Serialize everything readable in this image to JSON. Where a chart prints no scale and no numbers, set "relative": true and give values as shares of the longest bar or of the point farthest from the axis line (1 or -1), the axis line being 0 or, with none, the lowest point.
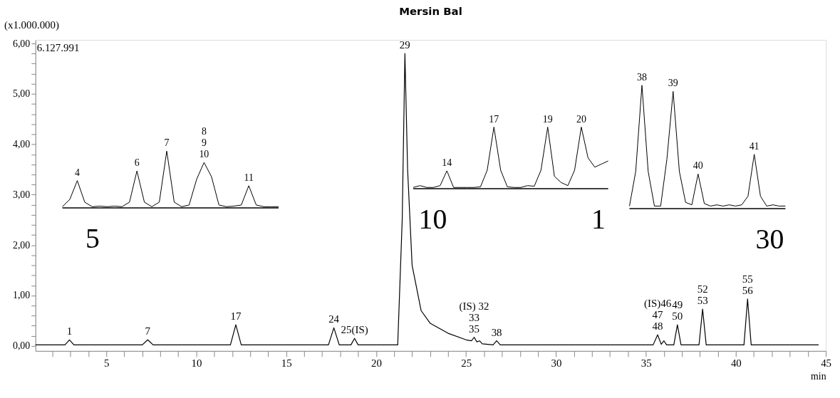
{
  "chart_data": [
    {
      "type": "line",
      "title": "Mersin Bal",
      "xlabel": "min",
      "annotations": [
        "(x1.000.000)",
        "6.127.991",
        {
          "text": "1",
          "x": 2.95,
          "y": 0.12
        },
        {
          "text": "7",
          "x": 7.3,
          "y": 0.12
        },
        {
          "text": "17",
          "x": 12.2,
          "y": 0.42
        },
        {
          "text": "24",
          "x": 17.65,
          "y": 0.36
        },
        {
          "text": "25(IS)",
          "x": 18.8,
          "y": 0.15
        },
        {
          "text": "29",
          "x": 21.6,
          "y": 5.8
        },
        {
          "text": "(IS) 32\n33\n35",
          "x": 25.45,
          "y": 0.17
        },
        {
          "text": "38",
          "x": 26.7,
          "y": 0.1
        },
        {
          "text": "(IS)46\n47\n48",
          "x": 35.65,
          "y": 0.22
        },
        {
          "text": "49\n50",
          "x": 36.75,
          "y": 0.42
        },
        {
          "text": "52\n53",
          "x": 38.15,
          "y": 0.73
        },
        {
          "text": "55\n56",
          "x": 40.65,
          "y": 0.93
        }
      ],
      "xlim": [
        1.06,
        45
      ],
      "xticks": [
        {
          "value": 2,
          "label": null
        },
        {
          "value": 3,
          "label": null
        },
        {
          "value": 4,
          "label": null
        },
        5,
        {
          "value": 6,
          "label": null
        },
        {
          "value": 7,
          "label": null
        },
        {
          "value": 8,
          "label": null
        },
        {
          "value": 9,
          "label": null
        },
        10,
        {
          "value": 11,
          "label": null
        },
        {
          "value": 12,
          "label": null
        },
        {
          "value": 13,
          "label": null
        },
        {
          "value": 14,
          "label": null
        },
        15,
        {
          "value": 16,
          "label": null
        },
        {
          "value": 17,
          "label": null
        },
        {
          "value": 18,
          "label": null
        },
        {
          "value": 19,
          "label": null
        },
        20,
        {
          "value": 21,
          "label": null
        },
        {
          "value": 22,
          "label": null
        },
        {
          "value": 23,
          "label": null
        },
        {
          "value": 24,
          "label": null
        },
        25,
        {
          "value": 26,
          "label": null
        },
        {
          "value": 27,
          "label": null
        },
        {
          "value": 28,
          "label": null
        },
        {
          "value": 29,
          "label": null
        },
        30,
        {
          "value": 31,
          "label": null
        },
        {
          "value": 32,
          "label": null
        },
        {
          "value": 33,
          "label": null
        },
        {
          "value": 34,
          "label": null
        },
        35,
        {
          "value": 36,
          "label": null
        },
        {
          "value": 37,
          "label": null
        },
        {
          "value": 38,
          "label": null
        },
        {
          "value": 39,
          "label": null
        },
        40,
        {
          "value": 41,
          "label": null
        },
        {
          "value": 42,
          "label": null
        },
        {
          "value": 43,
          "label": null
        },
        {
          "value": 44,
          "label": null
        },
        45
      ],
      "ylim": [
        -0.1,
        6.07
      ],
      "yticks": [
        {
          "value": 0,
          "label": "0,00"
        },
        {
          "value": 0.2,
          "label": null
        },
        {
          "value": 0.4,
          "label": null
        },
        {
          "value": 0.6,
          "label": null
        },
        {
          "value": 0.8,
          "label": null
        },
        {
          "value": 1,
          "label": "1,00"
        },
        {
          "value": 1.2,
          "label": null
        },
        {
          "value": 1.4,
          "label": null
        },
        {
          "value": 1.6,
          "label": null
        },
        {
          "value": 1.8,
          "label": null
        },
        {
          "value": 2,
          "label": "2,00"
        },
        {
          "value": 2.2,
          "label": null
        },
        {
          "value": 2.4,
          "label": null
        },
        {
          "value": 2.6,
          "label": null
        },
        {
          "value": 2.8,
          "label": null
        },
        {
          "value": 3,
          "label": "3,00"
        },
        {
          "value": 3.2,
          "label": null
        },
        {
          "value": 3.4,
          "label": null
        },
        {
          "value": 3.6,
          "label": null
        },
        {
          "value": 3.8,
          "label": null
        },
        {
          "value": 4,
          "label": "4,00"
        },
        {
          "value": 4.2,
          "label": null
        },
        {
          "value": 4.4,
          "label": null
        },
        {
          "value": 4.6,
          "label": null
        },
        {
          "value": 4.8,
          "label": null
        },
        {
          "value": 5,
          "label": "5,00"
        },
        {
          "value": 5.2,
          "label": null
        },
        {
          "value": 5.4,
          "label": null
        },
        {
          "value": 5.6,
          "label": null
        },
        {
          "value": 5.8,
          "label": null
        },
        {
          "value": 6,
          "label": "6,00"
        }
      ],
      "x": [
        1.06,
        2.7,
        2.95,
        3.2,
        7.0,
        7.3,
        7.6,
        11.9,
        12.2,
        12.5,
        17.35,
        17.65,
        17.95,
        18.6,
        18.8,
        19.0,
        21.2,
        21.45,
        21.6,
        21.75,
        22.0,
        22.5,
        23.0,
        23.5,
        24.0,
        25.0,
        25.3,
        25.45,
        25.6,
        25.75,
        25.9,
        26.5,
        26.7,
        26.9,
        35.4,
        35.65,
        35.85,
        36.0,
        36.15,
        36.55,
        36.75,
        36.95,
        37.95,
        38.15,
        38.35,
        40.45,
        40.65,
        40.85,
        44.6
      ],
      "series": [
        {
          "color": "#000000",
          "values": [
            0.02,
            0.02,
            0.12,
            0.02,
            0.02,
            0.12,
            0.02,
            0.02,
            0.42,
            0.02,
            0.02,
            0.36,
            0.02,
            0.02,
            0.15,
            0.02,
            0.02,
            2.5,
            5.8,
            3.5,
            1.6,
            0.7,
            0.45,
            0.35,
            0.25,
            0.12,
            0.1,
            0.17,
            0.08,
            0.1,
            0.04,
            0.02,
            0.1,
            0.02,
            0.02,
            0.22,
            0.03,
            0.1,
            0.02,
            0.02,
            0.42,
            0.02,
            0.02,
            0.73,
            0.02,
            0.02,
            0.93,
            0.02,
            0.02
          ]
        }
      ]
    },
    {
      "type": "line",
      "relative": true,
      "annotations": [
        {
          "text": "4",
          "y": 0.48
        },
        {
          "text": "6",
          "y": 0.65
        },
        {
          "text": "7",
          "y": 1.0
        },
        {
          "text": "8\n9\n10",
          "y": 0.8
        },
        {
          "text": "11",
          "y": 0.39
        },
        "5"
      ],
      "categories": [
        null,
        null,
        null,
        null,
        null,
        null,
        null,
        null,
        null,
        null,
        null,
        null,
        null,
        null,
        null,
        null,
        null,
        null,
        null,
        null,
        null,
        null,
        null,
        null,
        null,
        null,
        null,
        null,
        null,
        null
      ],
      "series": [
        {
          "color": "#000000",
          "values": [
            0.02,
            0.15,
            0.48,
            0.1,
            0.02,
            0.03,
            0.02,
            0.03,
            0.02,
            0.1,
            0.65,
            0.1,
            0.02,
            0.1,
            1.0,
            0.1,
            0.02,
            0.05,
            0.5,
            0.8,
            0.55,
            0.05,
            0.02,
            0.03,
            0.05,
            0.39,
            0.05,
            0.02,
            0.02,
            0.02
          ]
        }
      ]
    },
    {
      "type": "line",
      "relative": true,
      "annotations": [
        {
          "text": "14",
          "y": 0.29
        },
        {
          "text": "17",
          "y": 1.0
        },
        {
          "text": "19",
          "y": 1.0
        },
        {
          "text": "20",
          "y": 1.0
        },
        "10",
        "1"
      ],
      "categories": [
        null,
        null,
        null,
        null,
        null,
        null,
        null,
        null,
        null,
        null,
        null,
        null,
        null,
        null,
        null,
        null,
        null,
        null,
        null,
        null,
        null,
        null,
        null,
        null,
        null,
        null,
        null,
        null,
        null,
        null
      ],
      "series": [
        {
          "color": "#000000",
          "values": [
            0.02,
            0.05,
            0.02,
            0.02,
            0.05,
            0.29,
            0.02,
            0.02,
            0.02,
            0.02,
            0.03,
            0.3,
            1.0,
            0.3,
            0.03,
            0.02,
            0.02,
            0.05,
            0.04,
            0.3,
            1.0,
            0.2,
            0.1,
            0.05,
            0.3,
            1.0,
            0.5,
            0.35,
            0.4,
            0.45
          ]
        }
      ]
    },
    {
      "type": "line",
      "relative": true,
      "annotations": [
        {
          "text": "38",
          "y": 1.0
        },
        {
          "text": "39",
          "y": 0.95
        },
        {
          "text": "40",
          "y": 0.28
        },
        {
          "text": "41",
          "y": 0.44
        },
        "30"
      ],
      "categories": [
        null,
        null,
        null,
        null,
        null,
        null,
        null,
        null,
        null,
        null,
        null,
        null,
        null,
        null,
        null,
        null,
        null,
        null,
        null,
        null,
        null,
        null,
        null,
        null,
        null,
        null
      ],
      "series": [
        {
          "color": "#000000",
          "values": [
            0.02,
            0.3,
            1.0,
            0.3,
            0.02,
            0.02,
            0.4,
            0.95,
            0.3,
            0.05,
            0.03,
            0.28,
            0.04,
            0.02,
            0.03,
            0.02,
            0.03,
            0.02,
            0.03,
            0.1,
            0.44,
            0.1,
            0.02,
            0.03,
            0.02,
            0.02
          ]
        }
      ]
    }
  ]
}
